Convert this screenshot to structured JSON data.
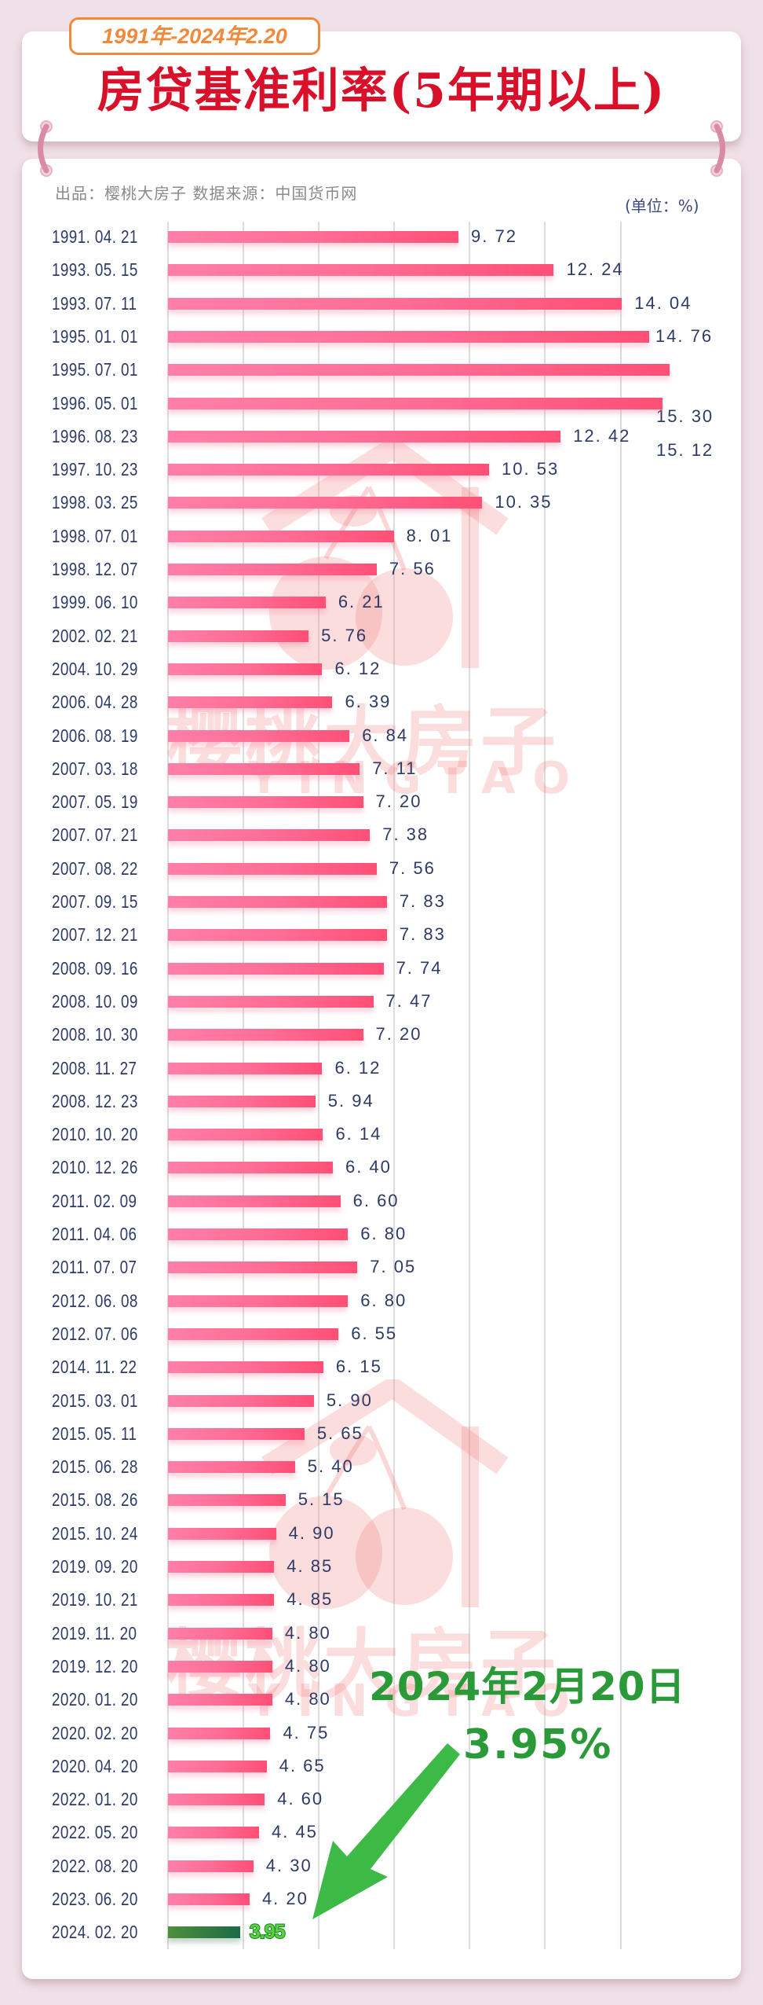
{
  "header": {
    "period_badge": "1991年-2024年2.20",
    "title": "房贷基准利率(5年期以上)"
  },
  "meta": {
    "credit": "出品：樱桃大房子   数据来源：中国货币网",
    "unit": "(单位：%)"
  },
  "watermark": {
    "brand": "樱桃大房子",
    "brand_en": "YINGTAO"
  },
  "annotation": {
    "date": "2024年2月20日",
    "rate": "3.95%",
    "arrow_icon": "green-arrow-down-left"
  },
  "colors": {
    "bar": "#ff6d96",
    "highlight_bar": "#1b6b47",
    "highlight_text": "#5cd043",
    "title": "#d8102a",
    "badge": "#f08a3a",
    "annotation": "#2a9a38",
    "label": "#2e3a66"
  },
  "chart_data": {
    "type": "bar",
    "orientation": "horizontal",
    "title": "房贷基准利率(5年期以上)",
    "subtitle": "1991年-2024年2.20",
    "xlabel": "",
    "ylabel": "",
    "unit": "%",
    "grid": true,
    "legend": "none",
    "highlight_index": 51,
    "categories": [
      "1991.04.21",
      "1993.05.15",
      "1993.07.11",
      "1995.01.01",
      "1995.07.01",
      "1996.05.01",
      "1996.08.23",
      "1997.10.23",
      "1998.03.25",
      "1998.07.01",
      "1998.12.07",
      "1999.06.10",
      "2002.02.21",
      "2004.10.29",
      "2006.04.28",
      "2006.08.19",
      "2007.03.18",
      "2007.05.19",
      "2007.07.21",
      "2007.08.22",
      "2007.09.15",
      "2007.12.21",
      "2008.09.16",
      "2008.10.09",
      "2008.10.30",
      "2008.11.27",
      "2008.12.23",
      "2010.10.20",
      "2010.12.26",
      "2011.02.09",
      "2011.04.06",
      "2011.07.07",
      "2012.06.08",
      "2012.07.06",
      "2014.11.22",
      "2015.03.01",
      "2015.05.11",
      "2015.06.28",
      "2015.08.26",
      "2015.10.24",
      "2019.09.20",
      "2019.10.21",
      "2019.11.20",
      "2019.12.20",
      "2020.01.20",
      "2020.02.20",
      "2020.04.20",
      "2022.01.20",
      "2022.05.20",
      "2022.08.20",
      "2023.06.20",
      "2024.02.20"
    ],
    "values": [
      9.72,
      12.24,
      14.04,
      14.76,
      15.3,
      15.12,
      12.42,
      10.53,
      10.35,
      8.01,
      7.56,
      6.21,
      5.76,
      6.12,
      6.39,
      6.84,
      7.11,
      7.2,
      7.38,
      7.56,
      7.83,
      7.83,
      7.74,
      7.47,
      7.2,
      6.12,
      5.94,
      6.14,
      6.4,
      6.6,
      6.8,
      7.05,
      6.8,
      6.55,
      6.15,
      5.9,
      5.65,
      5.4,
      5.15,
      4.9,
      4.85,
      4.85,
      4.8,
      4.8,
      4.8,
      4.75,
      4.65,
      4.6,
      4.45,
      4.3,
      4.2,
      3.95
    ],
    "labels": [
      "9. 72",
      "12. 24",
      "14. 04",
      "14. 76",
      "15. 30",
      "15. 12",
      "12. 42",
      "10. 53",
      "10. 35",
      "8. 01",
      "7. 56",
      "6. 21",
      "5. 76",
      "6. 12",
      "6. 39",
      "6. 84",
      "7. 11",
      "7. 20",
      "7. 38",
      "7. 56",
      "7. 83",
      "7. 83",
      "7. 74",
      "7. 47",
      "7. 20",
      "6. 12",
      "5. 94",
      "6. 14",
      "6. 40",
      "6. 60",
      "6. 80",
      "7. 05",
      "6. 80",
      "6. 55",
      "6. 15",
      "5. 90",
      "5. 65",
      "5. 40",
      "5. 15",
      "4. 90",
      "4. 85",
      "4. 85",
      "4. 80",
      "4. 80",
      "4. 80",
      "4. 75",
      "4. 65",
      "4. 60",
      "4. 45",
      "4. 30",
      "4. 20",
      "3.95"
    ],
    "date_labels": [
      "1991. 04. 21",
      "1993. 05. 15",
      "1993. 07. 11",
      "1995. 01. 01",
      "1995. 07. 01",
      "1996. 05. 01",
      "1996. 08. 23",
      "1997. 10. 23",
      "1998. 03. 25",
      "1998. 07. 01",
      "1998. 12. 07",
      "1999. 06. 10",
      "2002. 02. 21",
      "2004. 10. 29",
      "2006. 04. 28",
      "2006. 08. 19",
      "2007. 03. 18",
      "2007. 05. 19",
      "2007. 07. 21",
      "2007. 08. 22",
      "2007. 09. 15",
      "2007. 12. 21",
      "2008. 09. 16",
      "2008. 10. 09",
      "2008. 10. 30",
      "2008. 11. 27",
      "2008. 12. 23",
      "2010. 10. 20",
      "2010. 12. 26",
      "2011. 02. 09",
      "2011. 04. 06",
      "2011. 07. 07",
      "2012. 06. 08",
      "2012. 07. 06",
      "2014. 11. 22",
      "2015. 03. 01",
      "2015. 05. 11",
      "2015. 06. 28",
      "2015. 08. 26",
      "2015. 10. 24",
      "2019. 09. 20",
      "2019. 10. 21",
      "2019. 11. 20",
      "2019. 12. 20",
      "2020. 01. 20",
      "2020. 02. 20",
      "2020. 04. 20",
      "2022. 01. 20",
      "2022. 05. 20",
      "2022. 08. 20",
      "2023. 06. 20",
      "2024. 02. 20"
    ],
    "annotation": {
      "text": "2024年2月20日 3.95%",
      "target": "2024.02.20"
    }
  }
}
